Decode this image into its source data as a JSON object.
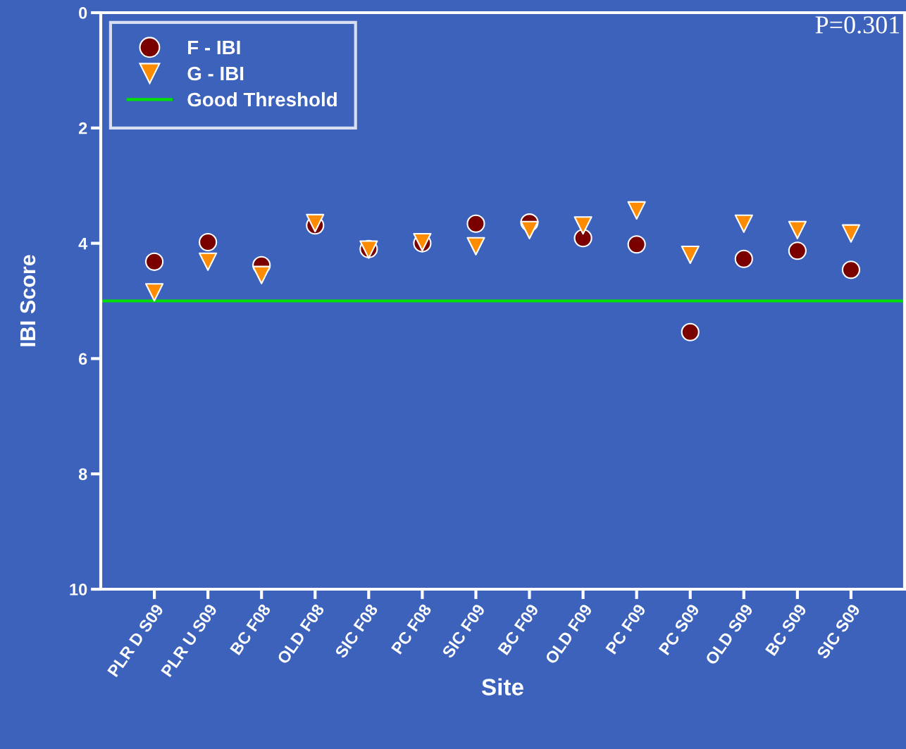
{
  "chart_data": {
    "type": "scatter",
    "xlabel": "Site",
    "ylabel": "IBI Score",
    "categories": [
      "PLR D S09",
      "PLR U S09",
      "BC F08",
      "OLD F08",
      "SIC F08",
      "PC F08",
      "SIC F09",
      "BC F09",
      "OLD F09",
      "PC F09",
      "PC S09",
      "OLD S09",
      "BC S09",
      "SIC S09"
    ],
    "series": [
      {
        "name": "F - IBI",
        "color": "#7a0000",
        "marker": "circle",
        "values": [
          4.32,
          3.98,
          4.38,
          3.69,
          4.1,
          4.0,
          3.66,
          3.64,
          3.91,
          4.02,
          5.54,
          4.27,
          4.13,
          4.46
        ]
      },
      {
        "name": "G - IBI",
        "color": "#ff8c00",
        "marker": "triangle",
        "values": [
          4.85,
          4.32,
          4.55,
          3.65,
          4.11,
          3.98,
          4.05,
          3.77,
          3.69,
          3.43,
          4.2,
          3.66,
          3.77,
          3.83
        ]
      }
    ],
    "ref_lines": [
      {
        "axis": "y",
        "value": 5,
        "label": "Good Threshold",
        "color": "#00e000",
        "line_style": "solid"
      }
    ],
    "ylim": [
      10,
      0
    ],
    "yticks": [
      0,
      2,
      4,
      6,
      8,
      10
    ],
    "annotations": [
      "P=0.301"
    ],
    "grid": false,
    "legend": "top left"
  }
}
